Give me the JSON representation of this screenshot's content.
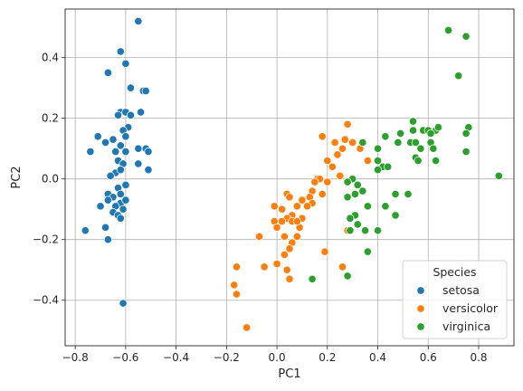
{
  "chart_data": {
    "type": "scatter",
    "title": "",
    "xlabel": "PC1",
    "ylabel": "PC2",
    "xlim": [
      -0.84,
      0.94
    ],
    "ylim": [
      -0.55,
      0.56
    ],
    "xticks": [
      -0.8,
      -0.6,
      -0.4,
      -0.2,
      0.0,
      0.2,
      0.4,
      0.6,
      0.8
    ],
    "yticks": [
      -0.4,
      -0.2,
      0.0,
      0.2,
      0.4
    ],
    "grid": true,
    "legend": {
      "title": "Species",
      "position": "lower right"
    },
    "series": [
      {
        "name": "setosa",
        "color": "#1f77b4",
        "points": [
          [
            -0.55,
            0.52
          ],
          [
            -0.62,
            0.42
          ],
          [
            -0.6,
            0.38
          ],
          [
            -0.67,
            0.35
          ],
          [
            -0.58,
            0.3
          ],
          [
            -0.53,
            0.29
          ],
          [
            -0.52,
            0.29
          ],
          [
            -0.62,
            0.22
          ],
          [
            -0.6,
            0.22
          ],
          [
            -0.63,
            0.21
          ],
          [
            -0.58,
            0.21
          ],
          [
            -0.54,
            0.22
          ],
          [
            -0.59,
            0.17
          ],
          [
            -0.61,
            0.16
          ],
          [
            -0.6,
            0.14
          ],
          [
            -0.65,
            0.13
          ],
          [
            -0.68,
            0.12
          ],
          [
            -0.71,
            0.14
          ],
          [
            -0.74,
            0.09
          ],
          [
            -0.62,
            0.11
          ],
          [
            -0.64,
            0.09
          ],
          [
            -0.6,
            0.09
          ],
          [
            -0.55,
            0.1
          ],
          [
            -0.52,
            0.1
          ],
          [
            -0.51,
            0.09
          ],
          [
            -0.63,
            0.06
          ],
          [
            -0.61,
            0.05
          ],
          [
            -0.55,
            0.05
          ],
          [
            -0.51,
            0.03
          ],
          [
            -0.64,
            0.02
          ],
          [
            -0.62,
            0.03
          ],
          [
            -0.66,
            0.01
          ],
          [
            -0.6,
            -0.02
          ],
          [
            -0.63,
            -0.03
          ],
          [
            -0.67,
            -0.05
          ],
          [
            -0.65,
            -0.06
          ],
          [
            -0.62,
            -0.05
          ],
          [
            -0.67,
            -0.07
          ],
          [
            -0.62,
            -0.08
          ],
          [
            -0.64,
            -0.09
          ],
          [
            -0.6,
            -0.07
          ],
          [
            -0.7,
            -0.09
          ],
          [
            -0.61,
            -0.1
          ],
          [
            -0.65,
            -0.11
          ],
          [
            -0.63,
            -0.12
          ],
          [
            -0.76,
            -0.17
          ],
          [
            -0.68,
            -0.16
          ],
          [
            -0.67,
            -0.2
          ],
          [
            -0.62,
            -0.13
          ],
          [
            -0.61,
            -0.41
          ]
        ]
      },
      {
        "name": "versicolor",
        "color": "#ff7f0e",
        "points": [
          [
            0.18,
            0.14
          ],
          [
            0.28,
            0.18
          ],
          [
            0.27,
            0.13
          ],
          [
            0.23,
            0.12
          ],
          [
            0.3,
            0.12
          ],
          [
            0.26,
            0.1
          ],
          [
            0.24,
            0.08
          ],
          [
            0.2,
            0.06
          ],
          [
            0.22,
            0.04
          ],
          [
            0.33,
            0.1
          ],
          [
            0.36,
            0.06
          ],
          [
            0.16,
            0.0
          ],
          [
            0.17,
            0.0
          ],
          [
            0.15,
            -0.01
          ],
          [
            0.2,
            -0.01
          ],
          [
            0.25,
            0.01
          ],
          [
            0.14,
            -0.04
          ],
          [
            0.13,
            -0.06
          ],
          [
            0.18,
            -0.05
          ],
          [
            0.1,
            -0.07
          ],
          [
            0.14,
            -0.08
          ],
          [
            0.12,
            -0.09
          ],
          [
            0.04,
            -0.05
          ],
          [
            0.05,
            -0.06
          ],
          [
            -0.01,
            -0.09
          ],
          [
            0.02,
            -0.1
          ],
          [
            0.08,
            -0.09
          ],
          [
            0.06,
            -0.12
          ],
          [
            0.1,
            -0.13
          ],
          [
            0.04,
            -0.13
          ],
          [
            0.06,
            -0.14
          ],
          [
            0.02,
            -0.14
          ],
          [
            0.09,
            -0.16
          ],
          [
            0.08,
            -0.19
          ],
          [
            0.06,
            -0.21
          ],
          [
            -0.01,
            -0.14
          ],
          [
            0.0,
            -0.16
          ],
          [
            0.08,
            -0.14
          ],
          [
            -0.07,
            -0.19
          ],
          [
            0.03,
            -0.19
          ],
          [
            0.03,
            -0.25
          ],
          [
            0.05,
            -0.23
          ],
          [
            0.0,
            -0.28
          ],
          [
            -0.05,
            -0.29
          ],
          [
            -0.16,
            -0.29
          ],
          [
            0.04,
            -0.3
          ],
          [
            0.05,
            -0.33
          ],
          [
            -0.17,
            -0.35
          ],
          [
            -0.16,
            -0.38
          ],
          [
            0.19,
            -0.24
          ],
          [
            0.26,
            -0.29
          ],
          [
            0.28,
            -0.17
          ],
          [
            -0.12,
            -0.49
          ]
        ]
      },
      {
        "name": "virginica",
        "color": "#2ca02c",
        "points": [
          [
            0.68,
            0.49
          ],
          [
            0.75,
            0.47
          ],
          [
            0.72,
            0.34
          ],
          [
            0.54,
            0.19
          ],
          [
            0.54,
            0.16
          ],
          [
            0.58,
            0.16
          ],
          [
            0.6,
            0.16
          ],
          [
            0.63,
            0.16
          ],
          [
            0.61,
            0.15
          ],
          [
            0.64,
            0.17
          ],
          [
            0.76,
            0.17
          ],
          [
            0.75,
            0.15
          ],
          [
            0.49,
            0.15
          ],
          [
            0.43,
            0.14
          ],
          [
            0.48,
            0.12
          ],
          [
            0.53,
            0.12
          ],
          [
            0.55,
            0.12
          ],
          [
            0.61,
            0.12
          ],
          [
            0.62,
            0.1
          ],
          [
            0.57,
            0.1
          ],
          [
            0.34,
            0.12
          ],
          [
            0.4,
            0.1
          ],
          [
            0.55,
            0.07
          ],
          [
            0.56,
            0.06
          ],
          [
            0.63,
            0.06
          ],
          [
            0.75,
            0.09
          ],
          [
            0.4,
            0.06
          ],
          [
            0.42,
            0.04
          ],
          [
            0.44,
            0.04
          ],
          [
            0.4,
            0.03
          ],
          [
            0.88,
            0.01
          ],
          [
            0.3,
            0.0
          ],
          [
            0.28,
            -0.01
          ],
          [
            0.32,
            -0.02
          ],
          [
            0.34,
            -0.04
          ],
          [
            0.28,
            -0.06
          ],
          [
            0.31,
            -0.05
          ],
          [
            0.47,
            -0.05
          ],
          [
            0.52,
            -0.05
          ],
          [
            0.36,
            -0.09
          ],
          [
            0.43,
            -0.09
          ],
          [
            0.31,
            -0.12
          ],
          [
            0.47,
            -0.12
          ],
          [
            0.29,
            -0.13
          ],
          [
            0.32,
            -0.15
          ],
          [
            0.29,
            -0.17
          ],
          [
            0.35,
            -0.17
          ],
          [
            0.4,
            -0.17
          ],
          [
            0.36,
            -0.24
          ],
          [
            0.28,
            -0.32
          ],
          [
            0.14,
            -0.33
          ]
        ]
      }
    ]
  }
}
